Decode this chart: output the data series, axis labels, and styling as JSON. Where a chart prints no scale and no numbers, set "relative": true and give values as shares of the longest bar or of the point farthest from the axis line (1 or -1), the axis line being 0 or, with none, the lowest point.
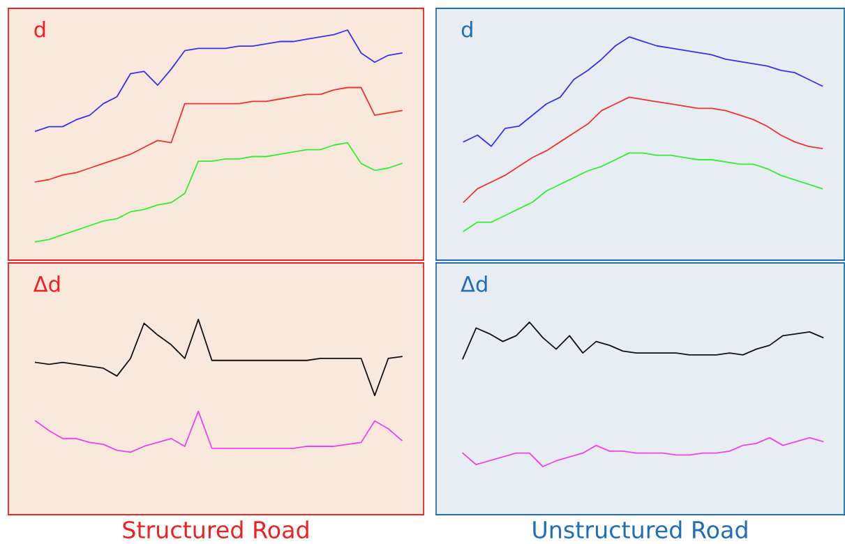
{
  "chart_data": [
    {
      "type": "line",
      "title": "d",
      "relative": true,
      "categories": [
        null,
        null,
        null,
        null,
        null,
        null,
        null,
        null,
        null,
        null,
        null,
        null,
        null,
        null,
        null,
        null,
        null,
        null,
        null,
        null,
        null,
        null,
        null,
        null,
        null,
        null,
        null,
        null
      ],
      "series": [
        {
          "color": "#3333ee",
          "values": [
            0.56,
            0.58,
            0.58,
            0.61,
            0.63,
            0.68,
            0.71,
            0.81,
            0.82,
            0.76,
            0.83,
            0.91,
            0.92,
            0.92,
            0.92,
            0.93,
            0.93,
            0.94,
            0.95,
            0.95,
            0.96,
            0.97,
            0.98,
            1.0,
            0.9,
            0.86,
            0.89,
            0.9
          ]
        },
        {
          "color": "#ee3333",
          "values": [
            0.34,
            0.35,
            0.37,
            0.38,
            0.4,
            0.42,
            0.44,
            0.46,
            0.49,
            0.52,
            0.51,
            0.68,
            0.68,
            0.68,
            0.68,
            0.68,
            0.69,
            0.69,
            0.7,
            0.71,
            0.72,
            0.72,
            0.74,
            0.75,
            0.75,
            0.63,
            0.64,
            0.65
          ]
        },
        {
          "color": "#33ee33",
          "values": [
            0.08,
            0.09,
            0.11,
            0.13,
            0.15,
            0.17,
            0.18,
            0.21,
            0.22,
            0.24,
            0.25,
            0.29,
            0.43,
            0.43,
            0.44,
            0.44,
            0.45,
            0.45,
            0.46,
            0.47,
            0.48,
            0.48,
            0.5,
            0.51,
            0.42,
            0.39,
            0.4,
            0.42
          ]
        }
      ]
    },
    {
      "type": "line",
      "title": "d",
      "relative": true,
      "categories": [
        null,
        null,
        null,
        null,
        null,
        null,
        null,
        null,
        null,
        null,
        null,
        null,
        null,
        null,
        null,
        null,
        null,
        null,
        null,
        null,
        null,
        null,
        null,
        null,
        null,
        null,
        null
      ],
      "series": [
        {
          "color": "#3333ee",
          "values": [
            0.53,
            0.56,
            0.51,
            0.59,
            0.6,
            0.65,
            0.7,
            0.73,
            0.81,
            0.85,
            0.9,
            0.96,
            1.0,
            0.98,
            0.96,
            0.95,
            0.94,
            0.93,
            0.92,
            0.9,
            0.89,
            0.88,
            0.87,
            0.85,
            0.84,
            0.81,
            0.78
          ]
        },
        {
          "color": "#ee3333",
          "values": [
            0.26,
            0.32,
            0.35,
            0.38,
            0.42,
            0.46,
            0.49,
            0.53,
            0.57,
            0.61,
            0.67,
            0.7,
            0.73,
            0.72,
            0.71,
            0.7,
            0.69,
            0.68,
            0.68,
            0.67,
            0.65,
            0.63,
            0.6,
            0.56,
            0.53,
            0.51,
            0.5
          ]
        },
        {
          "color": "#33ee33",
          "values": [
            0.13,
            0.17,
            0.17,
            0.2,
            0.23,
            0.26,
            0.31,
            0.34,
            0.37,
            0.4,
            0.42,
            0.45,
            0.48,
            0.48,
            0.47,
            0.47,
            0.46,
            0.45,
            0.45,
            0.44,
            0.43,
            0.43,
            0.41,
            0.38,
            0.36,
            0.34,
            0.32
          ]
        }
      ]
    },
    {
      "type": "line",
      "title": "Δd",
      "xlabel": "Structured Road",
      "relative": true,
      "categories": [
        null,
        null,
        null,
        null,
        null,
        null,
        null,
        null,
        null,
        null,
        null,
        null,
        null,
        null,
        null,
        null,
        null,
        null,
        null,
        null,
        null,
        null,
        null,
        null,
        null,
        null,
        null,
        null
      ],
      "series": [
        {
          "color": "#111111",
          "values": [
            0.78,
            0.77,
            0.78,
            0.77,
            0.76,
            0.75,
            0.71,
            0.8,
            0.98,
            0.92,
            0.87,
            0.8,
            1.0,
            0.79,
            0.79,
            0.79,
            0.79,
            0.79,
            0.79,
            0.79,
            0.79,
            0.8,
            0.8,
            0.8,
            0.8,
            0.61,
            0.8,
            0.81
          ]
        },
        {
          "color": "#ee44ee",
          "values": [
            0.48,
            0.43,
            0.39,
            0.39,
            0.37,
            0.36,
            0.33,
            0.32,
            0.35,
            0.37,
            0.39,
            0.35,
            0.53,
            0.34,
            0.34,
            0.34,
            0.34,
            0.34,
            0.34,
            0.34,
            0.35,
            0.35,
            0.35,
            0.36,
            0.37,
            0.48,
            0.44,
            0.38
          ]
        }
      ]
    },
    {
      "type": "line",
      "title": "Δd",
      "xlabel": "Unstructured Road",
      "relative": true,
      "categories": [
        null,
        null,
        null,
        null,
        null,
        null,
        null,
        null,
        null,
        null,
        null,
        null,
        null,
        null,
        null,
        null,
        null,
        null,
        null,
        null,
        null,
        null,
        null,
        null,
        null,
        null,
        null,
        null
      ],
      "series": [
        {
          "color": "#111111",
          "values": [
            0.81,
            0.97,
            0.94,
            0.9,
            0.93,
            1.0,
            0.92,
            0.86,
            0.93,
            0.84,
            0.9,
            0.88,
            0.85,
            0.84,
            0.84,
            0.84,
            0.84,
            0.83,
            0.83,
            0.83,
            0.84,
            0.83,
            0.86,
            0.88,
            0.93,
            0.94,
            0.95,
            0.92
          ]
        },
        {
          "color": "#ee44ee",
          "values": [
            0.32,
            0.26,
            0.28,
            0.3,
            0.32,
            0.32,
            0.25,
            0.28,
            0.3,
            0.32,
            0.36,
            0.33,
            0.33,
            0.32,
            0.32,
            0.32,
            0.31,
            0.31,
            0.32,
            0.32,
            0.33,
            0.36,
            0.37,
            0.4,
            0.36,
            0.38,
            0.4,
            0.38
          ]
        }
      ]
    }
  ]
}
